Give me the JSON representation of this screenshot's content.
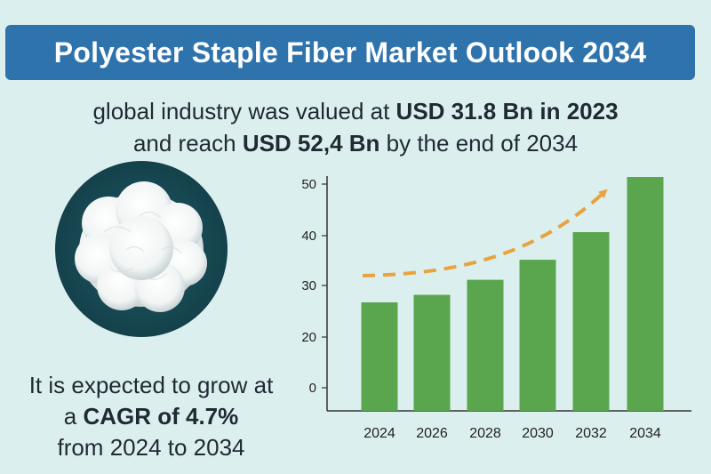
{
  "header": {
    "title": "Polyester Staple Fiber Market Outlook 2034"
  },
  "summary": {
    "line1_pre": "global industry was valued at ",
    "line1_bold": "USD 31.8 Bn in 2023",
    "line2_pre": "and reach ",
    "line2_bold": "USD 52,4 Bn",
    "line2_post": " by the end of 2034"
  },
  "growth": {
    "line1": "It is expected to grow at",
    "line2_pre": "a ",
    "line2_bold": "CAGR of 4.7%",
    "line3": "from 2024 to 2034"
  },
  "colors": {
    "title_bg": "#2f73ad",
    "bar": "#5aa64f",
    "trend_arrow": "#e8a33d",
    "background": "#dcefef"
  },
  "image": {
    "icon": "polyester-fiber-ball"
  },
  "chart_data": {
    "type": "bar",
    "categories": [
      "2024",
      "2026",
      "2028",
      "2030",
      "2032",
      "2034"
    ],
    "values": [
      27,
      28.5,
      31.5,
      35.5,
      41,
      52
    ],
    "yticks": [
      0,
      20,
      30,
      40,
      50
    ],
    "ylim": [
      0,
      55
    ],
    "title": "",
    "xlabel": "",
    "ylabel": "",
    "grid": false,
    "trend_arrow": true
  }
}
